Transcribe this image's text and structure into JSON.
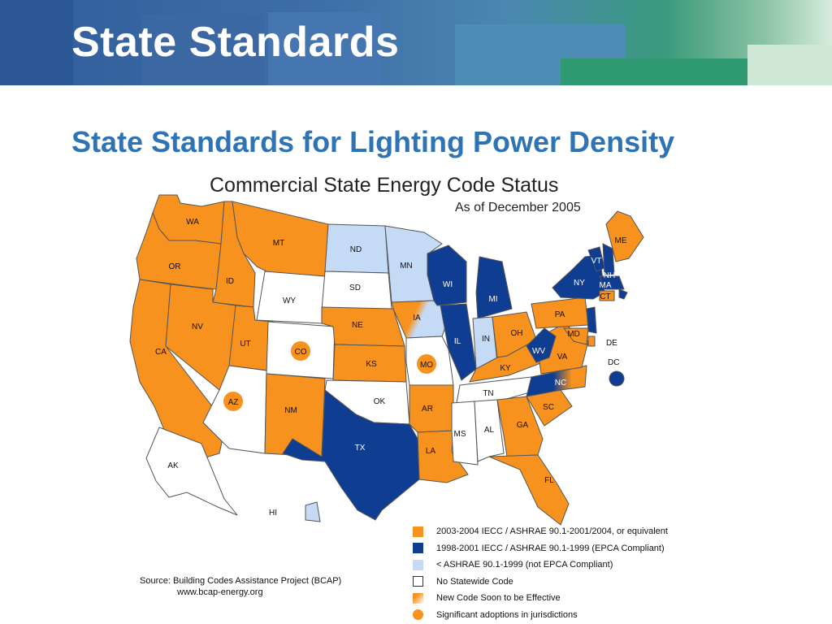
{
  "header": {
    "title": "State Standards",
    "colors": {
      "band_blue": "#2f5d9a",
      "band_green": "#3a9a7c"
    }
  },
  "slide": {
    "subtitle": "State Standards for Lighting Power Density"
  },
  "map": {
    "title": "Commercial State Energy Code Status",
    "date": "As of December 2005",
    "colors": {
      "orange": "#f7921e",
      "dark_blue": "#0f3d91",
      "light_blue": "#c5daf5",
      "white": "#ffffff",
      "border": "#555555"
    },
    "legend": [
      {
        "key": "iecc_2003",
        "label": "2003-2004 IECC / ASHRAE 90.1-2001/2004, or equivalent"
      },
      {
        "key": "iecc_1998",
        "label": "1998-2001 IECC / ASHRAE 90.1-1999 (EPCA Compliant)"
      },
      {
        "key": "below_1999",
        "label": "< ASHRAE 90.1-1999 (not EPCA Compliant)"
      },
      {
        "key": "none",
        "label": "No Statewide Code"
      },
      {
        "key": "soon",
        "label": "New Code Soon to be Effective"
      },
      {
        "key": "jurisdictions",
        "label": "Significant adoptions in jurisdictions"
      }
    ],
    "states": [
      {
        "abbr": "WA",
        "status": "iecc_2003"
      },
      {
        "abbr": "OR",
        "status": "iecc_2003"
      },
      {
        "abbr": "CA",
        "status": "iecc_2003"
      },
      {
        "abbr": "ID",
        "status": "iecc_2003"
      },
      {
        "abbr": "NV",
        "status": "iecc_2003"
      },
      {
        "abbr": "MT",
        "status": "iecc_2003"
      },
      {
        "abbr": "WY",
        "status": "none"
      },
      {
        "abbr": "UT",
        "status": "iecc_2003"
      },
      {
        "abbr": "CO",
        "status": "none",
        "jurisdictions": true
      },
      {
        "abbr": "AZ",
        "status": "none",
        "jurisdictions": true
      },
      {
        "abbr": "NM",
        "status": "iecc_2003"
      },
      {
        "abbr": "ND",
        "status": "below_1999"
      },
      {
        "abbr": "SD",
        "status": "none"
      },
      {
        "abbr": "NE",
        "status": "iecc_2003"
      },
      {
        "abbr": "KS",
        "status": "iecc_2003"
      },
      {
        "abbr": "OK",
        "status": "none"
      },
      {
        "abbr": "TX",
        "status": "iecc_1998"
      },
      {
        "abbr": "MN",
        "status": "below_1999"
      },
      {
        "abbr": "IA",
        "status": "iecc_2003",
        "soon": true
      },
      {
        "abbr": "MO",
        "status": "none",
        "jurisdictions": true
      },
      {
        "abbr": "AR",
        "status": "iecc_2003"
      },
      {
        "abbr": "LA",
        "status": "iecc_2003"
      },
      {
        "abbr": "WI",
        "status": "iecc_1998"
      },
      {
        "abbr": "IL",
        "status": "iecc_1998"
      },
      {
        "abbr": "MI",
        "status": "iecc_1998"
      },
      {
        "abbr": "IN",
        "status": "below_1999"
      },
      {
        "abbr": "OH",
        "status": "iecc_2003"
      },
      {
        "abbr": "KY",
        "status": "iecc_2003"
      },
      {
        "abbr": "TN",
        "status": "none"
      },
      {
        "abbr": "MS",
        "status": "none"
      },
      {
        "abbr": "AL",
        "status": "none"
      },
      {
        "abbr": "GA",
        "status": "iecc_2003"
      },
      {
        "abbr": "FL",
        "status": "iecc_2003"
      },
      {
        "abbr": "SC",
        "status": "iecc_2003"
      },
      {
        "abbr": "NC",
        "status": "iecc_1998",
        "soon": true
      },
      {
        "abbr": "VA",
        "status": "iecc_2003"
      },
      {
        "abbr": "WV",
        "status": "iecc_1998"
      },
      {
        "abbr": "PA",
        "status": "iecc_2003"
      },
      {
        "abbr": "NY",
        "status": "iecc_1998"
      },
      {
        "abbr": "VT",
        "status": "iecc_1998"
      },
      {
        "abbr": "NH",
        "status": "iecc_1998"
      },
      {
        "abbr": "ME",
        "status": "iecc_2003"
      },
      {
        "abbr": "MA",
        "status": "iecc_1998"
      },
      {
        "abbr": "RI",
        "status": "iecc_1998"
      },
      {
        "abbr": "CT",
        "status": "iecc_2003"
      },
      {
        "abbr": "NJ",
        "status": "iecc_1998"
      },
      {
        "abbr": "DE",
        "status": "iecc_2003"
      },
      {
        "abbr": "MD",
        "status": "iecc_2003"
      },
      {
        "abbr": "DC",
        "status": "iecc_1998"
      },
      {
        "abbr": "AK",
        "status": "none"
      },
      {
        "abbr": "HI",
        "status": "below_1999"
      }
    ]
  },
  "source": {
    "line1": "Source: Building Codes Assistance Project (BCAP)",
    "line2": "www.bcap-energy.org"
  }
}
